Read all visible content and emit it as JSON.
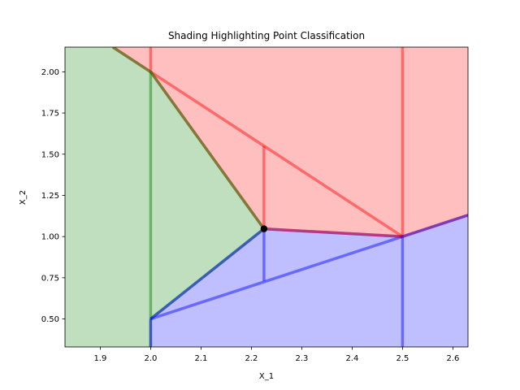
{
  "chart_data": {
    "type": "area",
    "title": "Shading Highlighting Point Classification",
    "xlabel": "X_1",
    "ylabel": "X_2",
    "xlim": [
      1.83,
      2.63
    ],
    "ylim": [
      0.33,
      2.15
    ],
    "x_ticks": [
      1.9,
      2.0,
      2.1,
      2.2,
      2.3,
      2.4,
      2.5,
      2.6
    ],
    "x_tick_labels": [
      "1.9",
      "2.0",
      "2.1",
      "2.2",
      "2.3",
      "2.4",
      "2.5",
      "2.6"
    ],
    "y_ticks": [
      0.5,
      0.75,
      1.0,
      1.25,
      1.5,
      1.75,
      2.0
    ],
    "y_tick_labels": [
      "0.50",
      "0.75",
      "1.00",
      "1.25",
      "1.50",
      "1.75",
      "2.00"
    ],
    "grid": false,
    "colors": {
      "red": "#ff0000",
      "green": "#008000",
      "blue": "#0000ff"
    },
    "regions": [
      {
        "color": "red",
        "polygon": [
          [
            1.83,
            2.15
          ],
          [
            2.63,
            2.15
          ],
          [
            2.63,
            1.13
          ],
          [
            2.5,
            1.0
          ],
          [
            2.225,
            1.047
          ],
          [
            2.0,
            2.0
          ],
          [
            1.925,
            2.15
          ]
        ]
      },
      {
        "color": "green",
        "polygon": [
          [
            1.83,
            0.33
          ],
          [
            2.0,
            0.33
          ],
          [
            2.0,
            0.5
          ],
          [
            2.225,
            1.047
          ],
          [
            2.0,
            2.0
          ],
          [
            1.925,
            2.15
          ],
          [
            1.83,
            2.15
          ]
        ]
      },
      {
        "color": "blue",
        "polygon": [
          [
            2.0,
            0.33
          ],
          [
            2.63,
            0.33
          ],
          [
            2.63,
            1.13
          ],
          [
            2.5,
            1.0
          ],
          [
            2.225,
            1.047
          ],
          [
            2.0,
            0.5
          ]
        ]
      }
    ],
    "segments": [
      {
        "color": "red",
        "points": [
          [
            2.0,
            2.15
          ],
          [
            2.0,
            2.0
          ]
        ]
      },
      {
        "color": "red",
        "points": [
          [
            2.5,
            2.15
          ],
          [
            2.5,
            1.0
          ]
        ]
      },
      {
        "color": "red",
        "points": [
          [
            2.225,
            1.55
          ],
          [
            2.225,
            1.047
          ]
        ]
      },
      {
        "color": "red",
        "points": [
          [
            2.0,
            2.0
          ],
          [
            2.5,
            1.0
          ]
        ]
      },
      {
        "color": "red",
        "points": [
          [
            2.5,
            1.0
          ],
          [
            2.63,
            1.13
          ]
        ]
      },
      {
        "color": "red",
        "points": [
          [
            1.925,
            2.15
          ],
          [
            2.0,
            2.0
          ]
        ]
      },
      {
        "color": "red",
        "points": [
          [
            2.0,
            2.0
          ],
          [
            2.225,
            1.047
          ]
        ]
      },
      {
        "color": "green",
        "points": [
          [
            2.0,
            2.0
          ],
          [
            2.225,
            1.047
          ]
        ]
      },
      {
        "color": "green",
        "points": [
          [
            1.925,
            2.15
          ],
          [
            2.0,
            2.0
          ]
        ]
      },
      {
        "color": "green",
        "points": [
          [
            2.0,
            2.0
          ],
          [
            2.0,
            0.33
          ]
        ]
      },
      {
        "color": "green",
        "points": [
          [
            2.0,
            0.5
          ],
          [
            2.225,
            1.047
          ]
        ]
      },
      {
        "color": "blue",
        "points": [
          [
            2.0,
            0.5
          ],
          [
            2.225,
            1.047
          ]
        ]
      },
      {
        "color": "blue",
        "points": [
          [
            2.0,
            0.5
          ],
          [
            2.0,
            0.33
          ]
        ]
      },
      {
        "color": "blue",
        "points": [
          [
            2.0,
            0.5
          ],
          [
            2.5,
            1.0
          ]
        ]
      },
      {
        "color": "blue",
        "points": [
          [
            2.225,
            1.047
          ],
          [
            2.225,
            0.73
          ]
        ]
      },
      {
        "color": "blue",
        "points": [
          [
            2.225,
            1.047
          ],
          [
            2.5,
            1.0
          ]
        ]
      },
      {
        "color": "red",
        "points": [
          [
            2.225,
            1.047
          ],
          [
            2.5,
            1.0
          ]
        ]
      },
      {
        "color": "blue",
        "points": [
          [
            2.5,
            1.0
          ],
          [
            2.5,
            0.33
          ]
        ]
      },
      {
        "color": "blue",
        "points": [
          [
            2.5,
            1.0
          ],
          [
            2.63,
            1.13
          ]
        ]
      }
    ],
    "points": [
      {
        "x": 2.225,
        "y": 1.047,
        "color": "#000000"
      }
    ]
  }
}
